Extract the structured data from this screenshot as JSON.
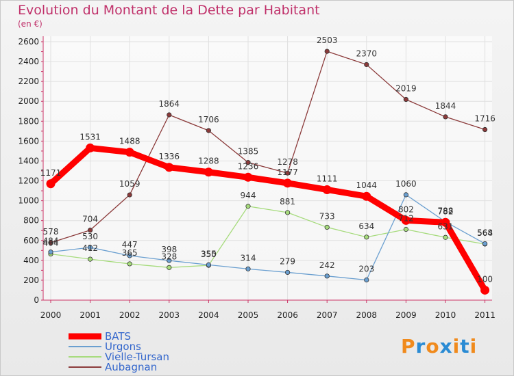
{
  "title": "Evolution du Montant de la Dette par Habitant",
  "subtitle": "(en €)",
  "logo": {
    "letters": [
      "P",
      "r",
      "o",
      "x",
      "i",
      "t",
      "i"
    ],
    "colors": [
      "#f08a1c",
      "#2a8bd4",
      "#f08a1c",
      "#2a8bd4",
      "#f08a1c",
      "#2a8bd4",
      "#f08a1c"
    ]
  },
  "chart_data": {
    "type": "line",
    "x": [
      "2000",
      "2001",
      "2002",
      "2003",
      "2004",
      "2005",
      "2006",
      "2007",
      "2008",
      "2009",
      "2010",
      "2011"
    ],
    "ylim": [
      0,
      2600
    ],
    "yticks": [
      0,
      200,
      400,
      600,
      800,
      1000,
      1200,
      1400,
      1600,
      1800,
      2000,
      2200,
      2400,
      2600
    ],
    "grid": true,
    "legend": "bottom-left",
    "series": [
      {
        "name": "BATS",
        "color": "#ff0000",
        "values": [
          1171,
          1531,
          1488,
          1336,
          1288,
          1236,
          1177,
          1111,
          1044,
          802,
          782,
          100
        ]
      },
      {
        "name": "Urgons",
        "color": "#6a9fd0",
        "values": [
          484,
          530,
          447,
          398,
          355,
          314,
          279,
          242,
          203,
          1060,
          788,
          568
        ]
      },
      {
        "name": "Vielle-Tursan",
        "color": "#a6db7c",
        "values": [
          464,
          412,
          365,
          328,
          350,
          944,
          881,
          733,
          634,
          712,
          631,
          564
        ]
      },
      {
        "name": "Aubagnan",
        "color": "#8b3a3a",
        "values": [
          578,
          704,
          1059,
          1864,
          1706,
          1385,
          1278,
          2503,
          2370,
          2019,
          1844,
          1716
        ]
      }
    ]
  }
}
